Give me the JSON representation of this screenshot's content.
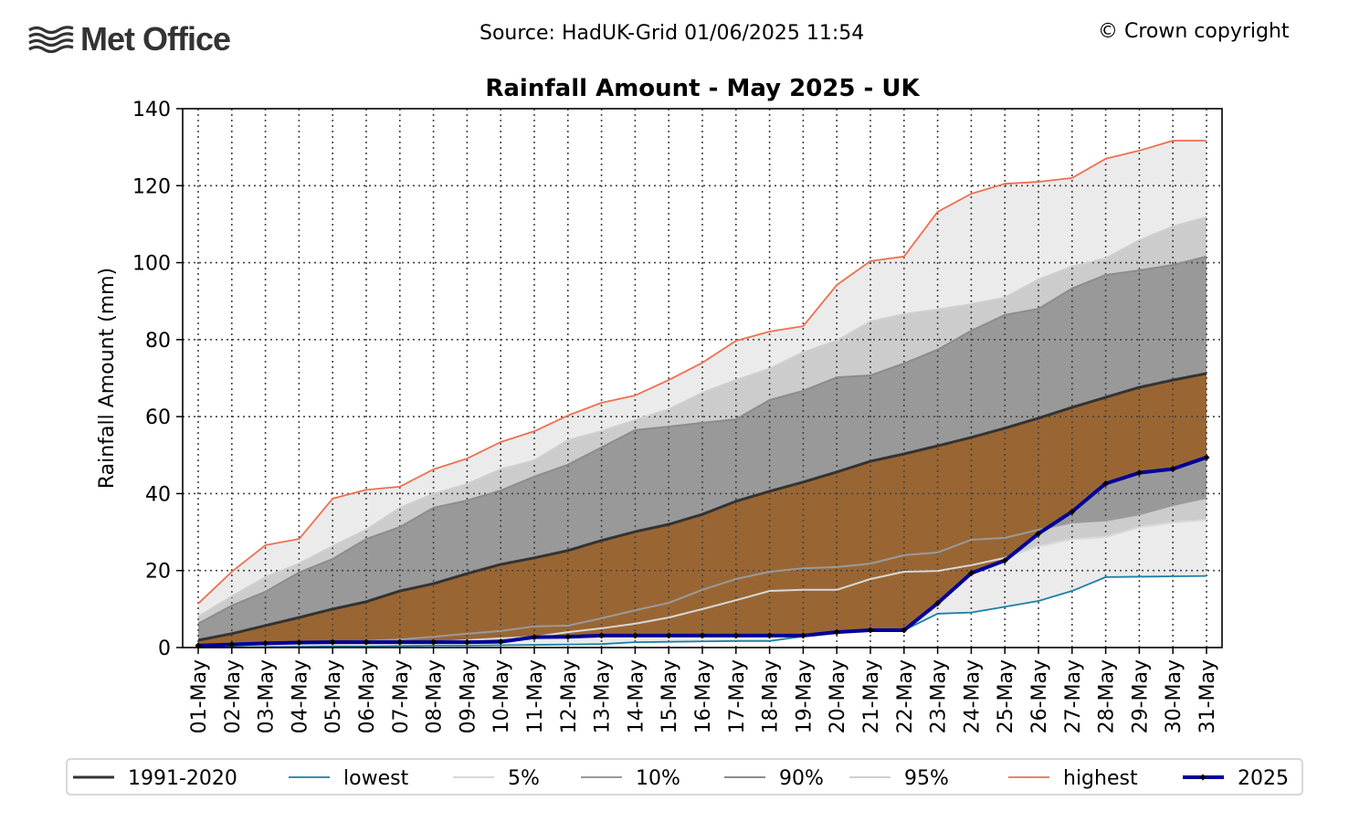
{
  "header": {
    "logo_text": "Met Office",
    "source": "Source: HadUK-Grid 01/06/2025 11:54",
    "copyright": "© Crown copyright"
  },
  "chart_data": {
    "type": "line",
    "title": "Rainfall Amount - May 2025 - UK",
    "xlabel": "",
    "ylabel": "Rainfall Amount (mm)",
    "ylim": [
      0,
      140
    ],
    "yticks": [
      0,
      20,
      40,
      60,
      80,
      100,
      120,
      140
    ],
    "grid": true,
    "legend_position": "bottom",
    "categories": [
      "01-May",
      "02-May",
      "03-May",
      "04-May",
      "05-May",
      "06-May",
      "07-May",
      "08-May",
      "09-May",
      "10-May",
      "11-May",
      "12-May",
      "13-May",
      "14-May",
      "15-May",
      "16-May",
      "17-May",
      "18-May",
      "19-May",
      "20-May",
      "21-May",
      "22-May",
      "23-May",
      "24-May",
      "25-May",
      "26-May",
      "27-May",
      "28-May",
      "29-May",
      "30-May",
      "31-May"
    ],
    "series": [
      {
        "name": "1991-2020",
        "color": "#333333",
        "values": [
          1.9,
          3.6,
          5.7,
          7.8,
          10,
          11.9,
          14.7,
          16.6,
          19.2,
          21.6,
          23.3,
          25.2,
          27.8,
          30.1,
          32,
          34.6,
          38,
          40.6,
          43,
          45.6,
          48.4,
          50.3,
          52.4,
          54.6,
          57,
          59.6,
          62.4,
          65,
          67.6,
          69.5,
          71.2
        ]
      },
      {
        "name": "lowest",
        "color": "#1a7fa8",
        "values": [
          0,
          0.1,
          0.1,
          0.2,
          0.3,
          0.3,
          0.4,
          0.5,
          0.5,
          0.6,
          0.7,
          0.8,
          0.9,
          1.4,
          1.5,
          1.6,
          1.7,
          1.7,
          2.9,
          4,
          4.4,
          4.5,
          8.8,
          9.1,
          10.6,
          12.1,
          14.7,
          18.3,
          18.4,
          18.5,
          18.6
        ]
      },
      {
        "name": "5%",
        "color": "#d9d9d9",
        "values": [
          0.2,
          0.5,
          0.5,
          0.7,
          0.7,
          0.9,
          1.2,
          1.4,
          1.9,
          2.4,
          2.8,
          4,
          5,
          6.2,
          7.8,
          10,
          12.3,
          14.7,
          15,
          15,
          17.8,
          19.7,
          19.9,
          21.4,
          23.3,
          26.3,
          28.2,
          28.7,
          31.3,
          32.5,
          33.2
        ]
      },
      {
        "name": "10%",
        "color": "#9a9a9a",
        "values": [
          0.7,
          1,
          1.2,
          1.4,
          1.4,
          1.7,
          2.1,
          2.8,
          3.6,
          4.3,
          5.5,
          5.7,
          7.6,
          9.7,
          11.6,
          15,
          17.8,
          19.7,
          20.6,
          20.9,
          21.8,
          24,
          24.7,
          28,
          28.5,
          30.6,
          32.5,
          33,
          34.6,
          37,
          38.9
        ]
      },
      {
        "name": "90%",
        "color": "#8c8c8c",
        "values": [
          6.2,
          10.9,
          14.5,
          19.5,
          23,
          28.2,
          31.3,
          36.3,
          38.2,
          40.8,
          44.4,
          47.5,
          52,
          56.5,
          57.4,
          58.4,
          59.3,
          64.3,
          66.7,
          70.2,
          70.7,
          73.8,
          77.4,
          82.3,
          86.4,
          88,
          93.3,
          96.8,
          98,
          99.4,
          101.6
        ]
      },
      {
        "name": "95%",
        "color": "#cfcfcf",
        "values": [
          8,
          13.3,
          18.3,
          21.8,
          26.3,
          30.6,
          36.3,
          39.9,
          42.5,
          46.3,
          48.6,
          53.9,
          56.2,
          59.1,
          61.9,
          66.2,
          69.5,
          72.4,
          76.7,
          79.7,
          84.7,
          86.6,
          87.8,
          89.2,
          90.9,
          95.6,
          99,
          101.1,
          105.8,
          109.4,
          111.8
        ]
      },
      {
        "name": "highest",
        "color": "#ee6f4f",
        "values": [
          11.4,
          19.7,
          26.6,
          28.2,
          38.7,
          41,
          41.8,
          46.3,
          49.1,
          53.4,
          56.2,
          60.3,
          63.6,
          65.5,
          69.5,
          74,
          79.7,
          82.1,
          83.5,
          94.2,
          100.4,
          101.6,
          113.2,
          117.9,
          120.5,
          121,
          122,
          127,
          129.1,
          131.7,
          131.7
        ]
      },
      {
        "name": "2025",
        "color": "#000099",
        "values": [
          0.5,
          0.8,
          1.1,
          1.3,
          1.4,
          1.4,
          1.4,
          1.4,
          1.4,
          1.5,
          2.7,
          2.8,
          3.1,
          3.1,
          3.1,
          3.1,
          3.1,
          3.1,
          3.1,
          4,
          4.5,
          4.5,
          11.5,
          19.3,
          22.6,
          29.6,
          35.3,
          42.6,
          45.4,
          46.4,
          49.4
        ]
      }
    ],
    "band_colors": {
      "outer": "#ebebeb",
      "middle": "#cccccc",
      "inner": "#999999",
      "anomaly": "#996633"
    }
  }
}
